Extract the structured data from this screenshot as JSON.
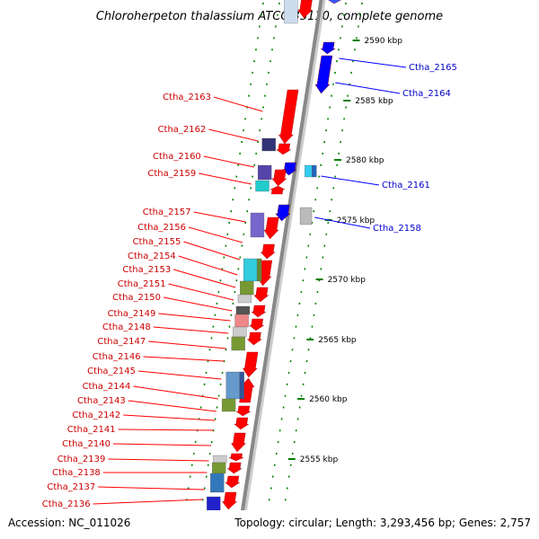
{
  "title": "Chloroherpeton thalassium ATCC 35110, complete genome",
  "footer": {
    "accession": "Accession: NC_011026",
    "summary": "Topology: circular; Length: 3,293,456 bp; Genes: 2,757"
  },
  "colors": {
    "forward_label": "#cc0000",
    "reverse_label": "#0000cc",
    "forward_arrow": "#ff0000",
    "reverse_arrow": "#0000ff",
    "backbone": "#888888",
    "tick": "#008000"
  },
  "scale_ticks": [
    {
      "label": "2590 kbp"
    },
    {
      "label": "2585 kbp"
    },
    {
      "label": "2580 kbp"
    },
    {
      "label": "2575 kbp"
    },
    {
      "label": "2570 kbp"
    },
    {
      "label": "2565 kbp"
    },
    {
      "label": "2560 kbp"
    },
    {
      "label": "2555 kbp"
    }
  ],
  "reverse_genes": [
    "Ctha_2165",
    "Ctha_2164",
    "Ctha_2161",
    "Ctha_2158"
  ],
  "forward_genes": [
    "Ctha_2163",
    "Ctha_2162",
    "Ctha_2160",
    "Ctha_2159",
    "Ctha_2157",
    "Ctha_2156",
    "Ctha_2155",
    "Ctha_2154",
    "Ctha_2153",
    "Ctha_2151",
    "Ctha_2150",
    "Ctha_2149",
    "Ctha_2148",
    "Ctha_2147",
    "Ctha_2146",
    "Ctha_2145",
    "Ctha_2144",
    "Ctha_2143",
    "Ctha_2142",
    "Ctha_2141",
    "Ctha_2140",
    "Ctha_2139",
    "Ctha_2138",
    "Ctha_2137",
    "Ctha_2136"
  ]
}
